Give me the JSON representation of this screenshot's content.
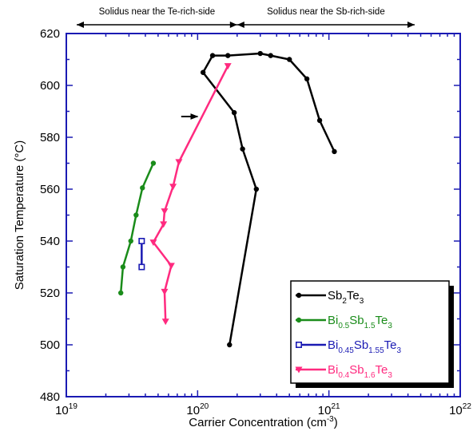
{
  "chart_data": {
    "type": "line",
    "xlabel": "Carrier Concentration (cm",
    "xlabel_sup": "-3",
    "xlabel_end": ")",
    "ylabel": "Saturation Temperature (°C)",
    "x_scale": "log",
    "xlim": [
      1e+19,
      1e+22
    ],
    "ylim": [
      480,
      620
    ],
    "x_ticks": [
      {
        "value": 1e+19,
        "base": "10",
        "exp": "19"
      },
      {
        "value": 1e+20,
        "base": "10",
        "exp": "20"
      },
      {
        "value": 1e+21,
        "base": "10",
        "exp": "21"
      },
      {
        "value": 1e+22,
        "base": "10",
        "exp": "22"
      }
    ],
    "y_ticks": [
      480,
      500,
      520,
      540,
      560,
      580,
      600,
      620
    ],
    "grid": false,
    "legend_placement": "bottom-right",
    "annotations": [
      {
        "text": "Solidus near the Te-rich-side",
        "x_range": [
          1.2e+19,
          2e+20
        ]
      },
      {
        "text": "Solidus near the Sb-rich-side",
        "x_range": [
          2e+20,
          4.5e+21
        ]
      }
    ],
    "arrow": {
      "from": [
        7.5e+19,
        588
      ],
      "to": [
        1e+20,
        588
      ]
    },
    "series": [
      {
        "name": "Sb2Te3",
        "legend_parts": [
          [
            "Sb",
            ""
          ],
          [
            "2",
            "sub"
          ],
          [
            "Te",
            ""
          ],
          [
            "3",
            "sub"
          ]
        ],
        "color": "#000000",
        "marker": "circle",
        "points": [
          [
            1.75e+20,
            500
          ],
          [
            2.8e+20,
            560
          ],
          [
            2.2e+20,
            575.5
          ],
          [
            1.9e+20,
            589.5
          ],
          [
            1.1e+20,
            605
          ],
          [
            1.3e+20,
            611.5
          ],
          [
            1.7e+20,
            611.5
          ],
          [
            3e+20,
            612.3
          ],
          [
            3.6e+20,
            611.5
          ],
          [
            5e+20,
            610
          ],
          [
            6.8e+20,
            602.5
          ],
          [
            8.5e+20,
            586.5
          ],
          [
            1.1e+21,
            574.5
          ]
        ]
      },
      {
        "name": "Bi0.5Sb1.5Te3",
        "legend_parts": [
          [
            "Bi",
            ""
          ],
          [
            "0.5",
            "sub"
          ],
          [
            "Sb",
            ""
          ],
          [
            "1.5",
            "sub"
          ],
          [
            "Te",
            ""
          ],
          [
            "3",
            "sub"
          ]
        ],
        "color": "#1a8c1a",
        "marker": "circle",
        "points": [
          [
            2.6e+19,
            520
          ],
          [
            2.7e+19,
            530
          ],
          [
            3.1e+19,
            540
          ],
          [
            3.4e+19,
            550
          ],
          [
            3.8e+19,
            560.5
          ],
          [
            4.6e+19,
            570
          ]
        ]
      },
      {
        "name": "Bi0.45Sb1.55Te3",
        "legend_parts": [
          [
            "Bi",
            ""
          ],
          [
            "0.45",
            "sub"
          ],
          [
            "Sb",
            ""
          ],
          [
            "1.55",
            "sub"
          ],
          [
            "Te",
            ""
          ],
          [
            "3",
            "sub"
          ]
        ],
        "color": "#1a1ab3",
        "marker": "square-open",
        "points": [
          [
            3.75e+19,
            540
          ],
          [
            3.75e+19,
            530
          ]
        ]
      },
      {
        "name": "Bi0.4Sb1.6Te3",
        "legend_parts": [
          [
            "Bi",
            ""
          ],
          [
            "0.4",
            "sub"
          ],
          [
            "Sb",
            ""
          ],
          [
            "1.6",
            "sub"
          ],
          [
            "Te",
            ""
          ],
          [
            "3",
            "sub"
          ]
        ],
        "color": "#ff2a7f",
        "marker": "triangle-down",
        "points": [
          [
            5.7e+19,
            509
          ],
          [
            5.6e+19,
            520.5
          ],
          [
            6.3e+19,
            530.5
          ],
          [
            4.6e+19,
            539.5
          ],
          [
            5.5e+19,
            546.5
          ],
          [
            5.6e+19,
            551.5
          ],
          [
            6.5e+19,
            561
          ],
          [
            7.2e+19,
            570.5
          ],
          [
            1.7e+20,
            607.5
          ]
        ]
      }
    ]
  }
}
